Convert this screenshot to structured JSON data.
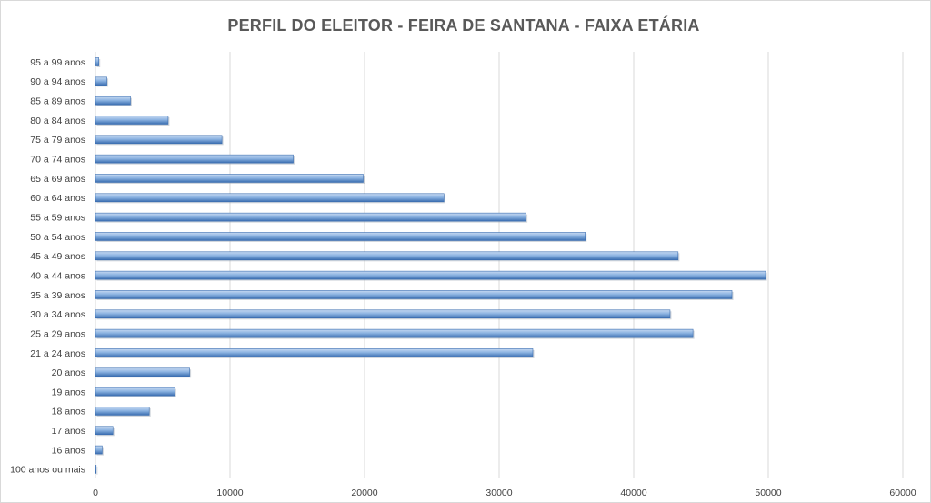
{
  "chart_data": {
    "type": "bar",
    "orientation": "horizontal",
    "title": "PERFIL DO ELEITOR - FEIRA DE SANTANA - FAIXA ETÁRIA",
    "xlabel": "",
    "ylabel": "",
    "xlim": [
      0,
      60000
    ],
    "x_ticks": [
      "0",
      "10000",
      "20000",
      "30000",
      "40000",
      "50000",
      "60000"
    ],
    "grid": "vertical",
    "legend": "none",
    "categories": [
      "95 a 99 anos",
      "90 a 94 anos",
      "85 a 89 anos",
      "80 a 84 anos",
      "75 a 79 anos",
      "70 a 74 anos",
      "65 a 69 anos",
      "60 a 64 anos",
      "55 a 59 anos",
      "50 a 54 anos",
      "45 a 49 anos",
      "40 a 44 anos",
      "35 a 39 anos",
      "30 a 34 anos",
      "25 a 29 anos",
      "21 a 24 anos",
      "20 anos",
      "19 anos",
      "18 anos",
      "17 anos",
      "16 anos",
      "100 anos ou mais"
    ],
    "values": [
      250,
      850,
      2600,
      5400,
      9400,
      14700,
      19900,
      25900,
      32000,
      36400,
      43300,
      49800,
      47300,
      42700,
      44400,
      32500,
      7000,
      5900,
      4000,
      1300,
      500,
      50
    ],
    "bar_color": "#8db4e2",
    "bar_edge_color": "#3a6db0",
    "grid_color": "#d9d9d9"
  }
}
